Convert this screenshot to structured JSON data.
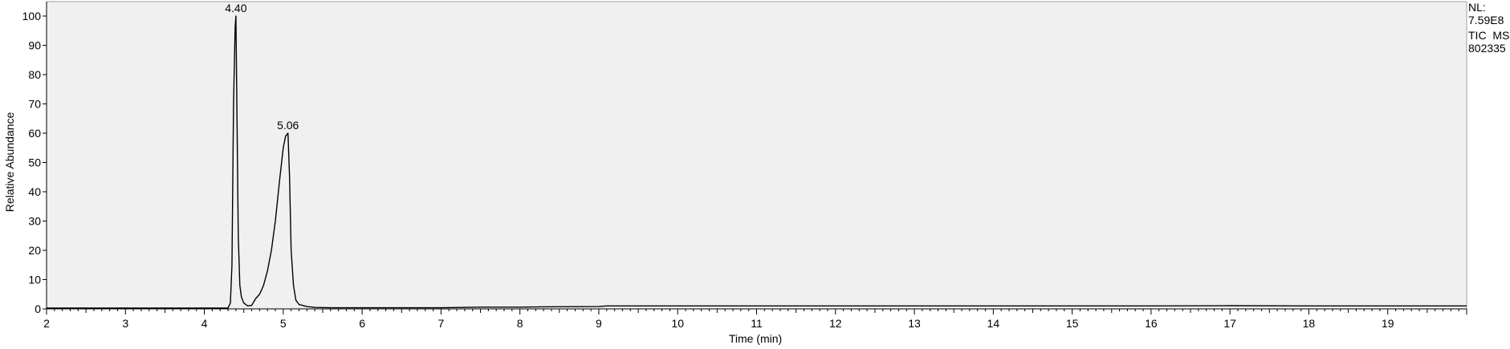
{
  "chart_data": {
    "type": "line",
    "title": "",
    "xlabel": "Time (min)",
    "ylabel": "Relative Abundance",
    "xlim": [
      2,
      20
    ],
    "ylim": [
      0,
      100
    ],
    "x_ticks": [
      2,
      3,
      4,
      5,
      6,
      7,
      8,
      9,
      10,
      11,
      12,
      13,
      14,
      15,
      16,
      17,
      18,
      19
    ],
    "y_ticks": [
      0,
      10,
      20,
      30,
      40,
      50,
      60,
      70,
      80,
      90,
      100
    ],
    "grid": false,
    "legend": "none",
    "colors": {
      "plot_background": "#f0f0f0",
      "line": "#000000"
    },
    "info": [
      "NL:",
      "7.59E8",
      "TIC  MS",
      "802335"
    ],
    "peaks": [
      {
        "label": "4.40",
        "x": 4.4,
        "y": 100
      },
      {
        "label": "5.06",
        "x": 5.06,
        "y": 60
      }
    ],
    "series": [
      {
        "x": [
          2.0,
          3.0,
          4.0,
          4.3,
          4.33,
          4.35,
          4.37,
          4.39,
          4.4,
          4.41,
          4.43,
          4.45,
          4.47,
          4.5,
          4.55,
          4.6,
          4.65,
          4.7,
          4.75,
          4.8,
          4.85,
          4.9,
          4.95,
          5.0,
          5.03,
          5.06,
          5.08,
          5.1,
          5.13,
          5.16,
          5.2,
          5.3,
          5.4,
          5.6,
          6.0,
          7.0,
          7.5,
          8.0,
          8.3,
          9.0,
          9.1,
          10.0,
          12.0,
          14.0,
          16.0,
          17.0,
          18.0,
          20.0
        ],
        "y": [
          0.3,
          0.3,
          0.3,
          0.3,
          2,
          15,
          70,
          96,
          100,
          75,
          25,
          8,
          4,
          2,
          1,
          1.2,
          3.5,
          5,
          8,
          13,
          20,
          30,
          43,
          55,
          59,
          60,
          45,
          20,
          8,
          3,
          1.5,
          0.8,
          0.5,
          0.4,
          0.4,
          0.4,
          0.6,
          0.6,
          0.7,
          0.8,
          1.0,
          1.0,
          1.0,
          1.0,
          1.0,
          1.1,
          1.0,
          1.0
        ]
      }
    ]
  }
}
